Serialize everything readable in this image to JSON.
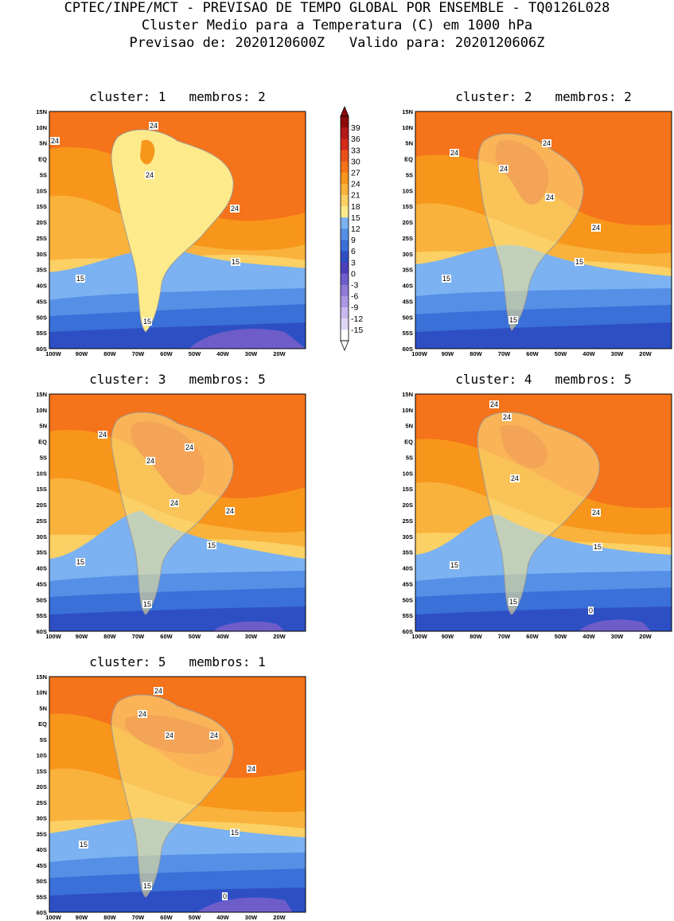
{
  "header": {
    "line1": "CPTEC/INPE/MCT - PREVISAO DE TEMPO GLOBAL POR ENSEMBLE - TQ0126L028",
    "line2": "Cluster Medio para a Temperatura (C) em 1000 hPa",
    "line3": "Previsao de: 2020120600Z   Valido para: 2020120606Z"
  },
  "axes": {
    "lat_labels": [
      "15N",
      "10N",
      "5N",
      "EQ",
      "5S",
      "10S",
      "15S",
      "20S",
      "25S",
      "30S",
      "35S",
      "40S",
      "45S",
      "50S",
      "55S",
      "60S"
    ],
    "lon_labels": [
      "100W",
      "90W",
      "80W",
      "70W",
      "60W",
      "50W",
      "40W",
      "30W",
      "20W"
    ]
  },
  "colorbar": {
    "labels": [
      "39",
      "36",
      "33",
      "30",
      "27",
      "24",
      "21",
      "18",
      "15",
      "12",
      "9",
      "6",
      "3",
      "0",
      "-3",
      "-6",
      "-9",
      "-12",
      "-15"
    ],
    "colors": [
      "#ffffff",
      "#e0d6f5",
      "#c8b8ee",
      "#ab97e2",
      "#8f78d6",
      "#6e5dc9",
      "#4a40bb",
      "#2e4fc4",
      "#3a70d8",
      "#5590e6",
      "#7cb2f1",
      "#fdea8a",
      "#fbd064",
      "#f9b23c",
      "#f7961b",
      "#f5731a",
      "#e8501a",
      "#d42b1b",
      "#b51a1a",
      "#8c0a0a"
    ]
  },
  "panels": [
    {
      "title": "cluster: 1   membros: 2",
      "labels": {
        "n24": "24",
        "w24": "24",
        "c24": "24",
        "e24": "24",
        "s15": "15",
        "w15": "15",
        "e15": "15"
      }
    },
    {
      "title": "cluster: 2   membros: 2",
      "labels": {
        "n24": "24",
        "w24": "24",
        "c24": "24",
        "c24b": "24",
        "e24": "24",
        "s15": "15",
        "w15": "15",
        "e15": "15"
      }
    },
    {
      "title": "cluster: 3   membros: 5",
      "labels": {
        "n24": "24",
        "w24": "24",
        "c24": "24",
        "c24b": "24",
        "e24": "24",
        "s15": "15",
        "w15": "15",
        "e15": "15"
      }
    },
    {
      "title": "cluster: 4   membros: 5",
      "labels": {
        "n24": "24",
        "w24": "24",
        "c24": "24",
        "e24": "24",
        "s15": "15",
        "w15": "15",
        "e15": "15",
        "z0": "0"
      }
    },
    {
      "title": "cluster: 5   membros: 1",
      "labels": {
        "n24": "24",
        "w24": "24",
        "c24": "24",
        "c24b": "24",
        "e24": "24",
        "s15": "15",
        "w15": "15",
        "e15": "15",
        "z0": "0"
      }
    }
  ]
}
